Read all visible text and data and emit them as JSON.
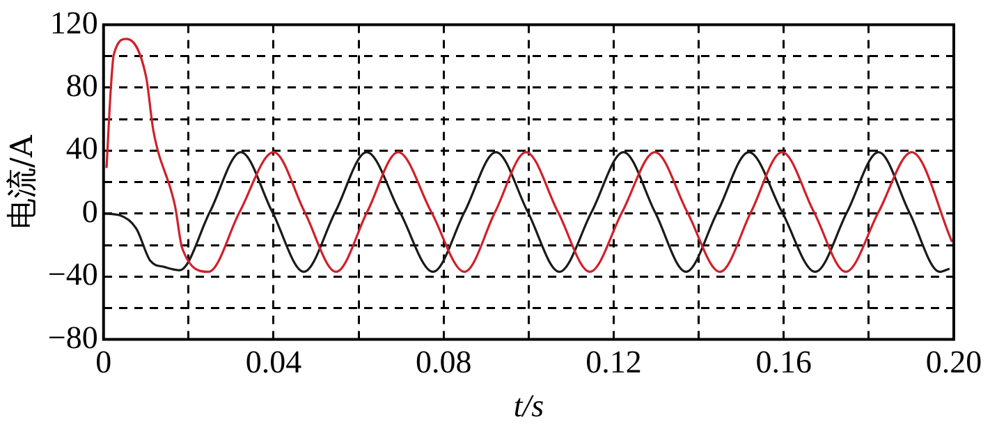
{
  "chart_data": {
    "type": "line",
    "xlabel": "t/s",
    "ylabel": "电流/A",
    "xlim": [
      0,
      0.2
    ],
    "ylim": [
      -80,
      120
    ],
    "xticks": [
      0,
      {
        "value": 0.02,
        "label": null
      },
      0.04,
      {
        "value": 0.06,
        "label": null
      },
      0.08,
      {
        "value": 0.1,
        "label": null
      },
      0.12,
      {
        "value": 0.14,
        "label": null
      },
      0.16,
      {
        "value": 0.18,
        "label": null
      },
      {
        "value": 0.2,
        "label": "0.20"
      }
    ],
    "yticks": [
      {
        "value": -80,
        "label": "−80"
      },
      {
        "value": -60,
        "label": null
      },
      {
        "value": -40,
        "label": "−40"
      },
      {
        "value": -20,
        "label": null
      },
      0,
      {
        "value": 20,
        "label": null
      },
      40,
      {
        "value": 60,
        "label": null
      },
      80,
      {
        "value": 100,
        "label": null
      },
      120
    ],
    "grid": true,
    "legend": false,
    "marker": "none",
    "line_style": "solid",
    "series": [
      {
        "color": "#d0202a",
        "x": [
          0.0007,
          0.0017,
          0.0024,
          0.0054,
          0.01,
          0.0117,
          0.0168,
          0.0185,
          0.0247,
          0.032,
          0.04,
          0.0473,
          0.0547,
          0.062,
          0.0693,
          0.0771,
          0.0849,
          0.0921,
          0.0994,
          0.1069,
          0.1144,
          0.122,
          0.1297,
          0.1373,
          0.145,
          0.1523,
          0.1596,
          0.1671,
          0.1746,
          0.1823,
          0.1901,
          0.1996
        ],
        "values": [
          29,
          79,
          101,
          111,
          87,
          53,
          5,
          -22,
          -37,
          1,
          39,
          1,
          -37,
          1,
          39,
          1,
          -37,
          1,
          39,
          1,
          -37,
          1,
          39,
          1,
          -37,
          1,
          39,
          1,
          -37,
          1,
          39,
          -18
        ]
      },
      {
        "color": "#1a1a1a",
        "x": [
          0,
          0.0037,
          0.0077,
          0.011,
          0.0144,
          0.0179,
          0.025,
          0.0323,
          0.0397,
          0.0471,
          0.0545,
          0.0619,
          0.0697,
          0.0775,
          0.0849,
          0.0923,
          0.0998,
          0.1072,
          0.1148,
          0.1223,
          0.1297,
          0.137,
          0.1444,
          0.1518,
          0.1596,
          0.1674,
          0.1749,
          0.1823,
          0.1895,
          0.1967,
          0.199
        ],
        "values": [
          0,
          -1,
          -9.5,
          -30,
          -34,
          -36,
          1,
          39,
          1,
          -37,
          1,
          39,
          1,
          -37,
          1,
          39,
          1,
          -37,
          1,
          39,
          1,
          -37,
          1,
          39,
          1,
          -37,
          1,
          39,
          1,
          -37,
          -35
        ]
      }
    ]
  }
}
